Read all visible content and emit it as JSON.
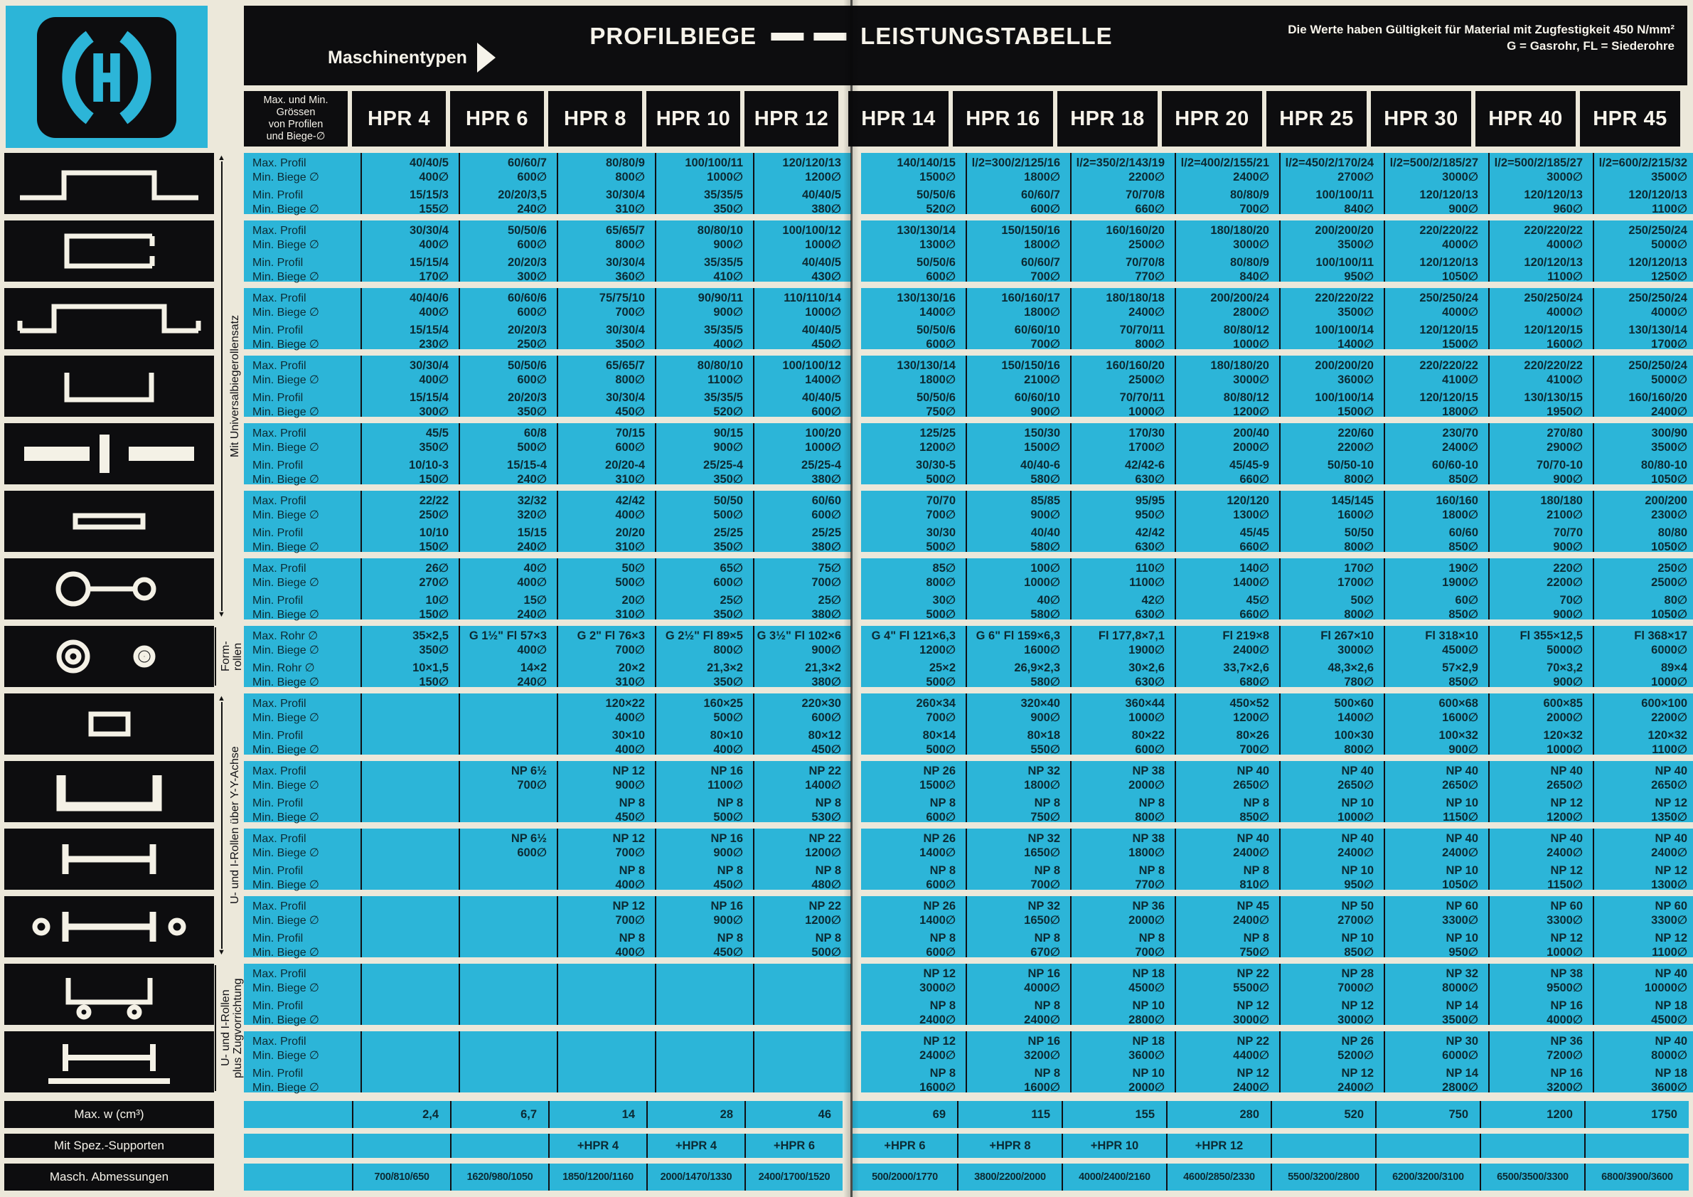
{
  "colors": {
    "cyan": "#2cb5d8",
    "black": "#0d0d0f",
    "paper": "#ece8da",
    "ink": "#0c2a33"
  },
  "header": {
    "machine_types_label": "Maschinentypen",
    "title_left": "PROFILBIEGE",
    "title_right": "LEISTUNGSTABELLE",
    "note_line1": "Die Werte haben Gültigkeit für Material mit Zugfestigkeit 450 N/mm²",
    "note_line2": "G = Gasrohr, FL = Siederohre",
    "size_label_lines": [
      "Max. und Min.",
      "Grössen",
      "von Profilen",
      "und Biege-∅"
    ],
    "columns": [
      "HPR 4",
      "HPR 6",
      "HPR 8",
      "HPR 10",
      "HPR 12",
      "HPR 14",
      "HPR 16",
      "HPR 18",
      "HPR 20",
      "HPR 25",
      "HPR 30",
      "HPR 40",
      "HPR 45"
    ]
  },
  "side_sections": [
    {
      "label": "Mit Universalbiegerollensatz",
      "group_span": 7,
      "arrows": true
    },
    {
      "label": "Form-\nrollen",
      "group_span": 1,
      "arrows": false
    },
    {
      "label": "U- und I-Rollen über Y-Y-Achse",
      "group_span": 4,
      "arrows": true
    },
    {
      "label": "U- und I-Rollen\nplus Zugvorrichtung",
      "group_span": 2,
      "arrows": false
    }
  ],
  "groups": [
    {
      "icon": "hat-profile-icon",
      "labels": [
        "Max. Profil",
        "Min. Biege ∅",
        "Min. Profil",
        "Min. Biege ∅"
      ],
      "max_profil": [
        "40/40/5",
        "60/60/7",
        "80/80/9",
        "100/100/11",
        "120/120/13",
        "140/140/15",
        "l/2=300/2/125/16",
        "l/2=350/2/143/19",
        "l/2=400/2/155/21",
        "l/2=450/2/170/24",
        "l/2=500/2/185/27",
        "l/2=500/2/185/27",
        "l/2=600/2/215/32"
      ],
      "max_biege": [
        "400∅",
        "600∅",
        "800∅",
        "1000∅",
        "1200∅",
        "1500∅",
        "1800∅",
        "2200∅",
        "2400∅",
        "2700∅",
        "3000∅",
        "3000∅",
        "3500∅"
      ],
      "min_profil": [
        "15/15/3",
        "20/20/3,5",
        "30/30/4",
        "35/35/5",
        "40/40/5",
        "50/50/6",
        "60/60/7",
        "70/70/8",
        "80/80/9",
        "100/100/11",
        "120/120/13",
        "120/120/13",
        "120/120/13"
      ],
      "min_biege": [
        "155∅",
        "240∅",
        "310∅",
        "350∅",
        "380∅",
        "520∅",
        "600∅",
        "660∅",
        "700∅",
        "840∅",
        "900∅",
        "960∅",
        "1100∅"
      ]
    },
    {
      "icon": "c-profile-icon",
      "labels": [
        "Max. Profil",
        "Min. Biege ∅",
        "Min. Profil",
        "Min. Biege ∅"
      ],
      "max_profil": [
        "30/30/4",
        "50/50/6",
        "65/65/7",
        "80/80/10",
        "100/100/12",
        "130/130/14",
        "150/150/16",
        "160/160/20",
        "180/180/20",
        "200/200/20",
        "220/220/22",
        "220/220/22",
        "250/250/24"
      ],
      "max_biege": [
        "400∅",
        "600∅",
        "800∅",
        "900∅",
        "1000∅",
        "1300∅",
        "1800∅",
        "2500∅",
        "3000∅",
        "3500∅",
        "4000∅",
        "4000∅",
        "5000∅"
      ],
      "min_profil": [
        "15/15/4",
        "20/20/3",
        "30/30/4",
        "35/35/5",
        "40/40/5",
        "50/50/6",
        "60/60/7",
        "70/70/8",
        "80/80/9",
        "100/100/11",
        "120/120/13",
        "120/120/13",
        "120/120/13"
      ],
      "min_biege": [
        "170∅",
        "300∅",
        "360∅",
        "410∅",
        "430∅",
        "600∅",
        "700∅",
        "770∅",
        "840∅",
        "950∅",
        "1050∅",
        "1100∅",
        "1250∅"
      ]
    },
    {
      "icon": "hat-wide-profile-icon",
      "labels": [
        "Max. Profil",
        "Min. Biege ∅",
        "Min. Profil",
        "Min. Biege ∅"
      ],
      "max_profil": [
        "40/40/6",
        "60/60/6",
        "75/75/10",
        "90/90/11",
        "110/110/14",
        "130/130/16",
        "160/160/17",
        "180/180/18",
        "200/200/24",
        "220/220/22",
        "250/250/24",
        "250/250/24",
        "250/250/24"
      ],
      "max_biege": [
        "400∅",
        "600∅",
        "700∅",
        "900∅",
        "1000∅",
        "1400∅",
        "1800∅",
        "2400∅",
        "2800∅",
        "3500∅",
        "4000∅",
        "4000∅",
        "4000∅"
      ],
      "min_profil": [
        "15/15/4",
        "20/20/3",
        "30/30/4",
        "35/35/5",
        "40/40/5",
        "50/50/6",
        "60/60/10",
        "70/70/11",
        "80/80/12",
        "100/100/14",
        "120/120/15",
        "120/120/15",
        "130/130/14"
      ],
      "min_biege": [
        "230∅",
        "250∅",
        "350∅",
        "400∅",
        "450∅",
        "600∅",
        "700∅",
        "800∅",
        "1000∅",
        "1400∅",
        "1500∅",
        "1600∅",
        "1700∅"
      ]
    },
    {
      "icon": "u-profile-icon",
      "labels": [
        "Max. Profil",
        "Min. Biege ∅",
        "Min. Profil",
        "Min. Biege ∅"
      ],
      "max_profil": [
        "30/30/4",
        "50/50/6",
        "65/65/7",
        "80/80/10",
        "100/100/12",
        "130/130/14",
        "150/150/16",
        "160/160/20",
        "180/180/20",
        "200/200/20",
        "220/220/22",
        "220/220/22",
        "250/250/24"
      ],
      "max_biege": [
        "400∅",
        "600∅",
        "800∅",
        "1100∅",
        "1400∅",
        "1800∅",
        "2100∅",
        "2500∅",
        "3000∅",
        "3600∅",
        "4100∅",
        "4100∅",
        "5000∅"
      ],
      "min_profil": [
        "15/15/4",
        "20/20/3",
        "30/30/4",
        "35/35/5",
        "40/40/5",
        "50/50/6",
        "60/60/10",
        "70/70/11",
        "80/80/12",
        "100/100/14",
        "120/120/15",
        "130/130/15",
        "160/160/20"
      ],
      "min_biege": [
        "300∅",
        "350∅",
        "450∅",
        "520∅",
        "600∅",
        "750∅",
        "900∅",
        "1000∅",
        "1200∅",
        "1500∅",
        "1800∅",
        "1950∅",
        "2400∅"
      ]
    },
    {
      "icon": "flat-on-edge-icon",
      "labels": [
        "Max. Profil",
        "Min. Biege ∅",
        "Min. Profil",
        "Min. Biege ∅"
      ],
      "max_profil": [
        "45/5",
        "60/8",
        "70/15",
        "90/15",
        "100/20",
        "125/25",
        "150/30",
        "170/30",
        "200/40",
        "220/60",
        "230/70",
        "270/80",
        "300/90"
      ],
      "max_biege": [
        "350∅",
        "500∅",
        "600∅",
        "900∅",
        "1000∅",
        "1200∅",
        "1500∅",
        "1700∅",
        "2000∅",
        "2200∅",
        "2400∅",
        "2900∅",
        "3500∅"
      ],
      "min_profil": [
        "10/10-3",
        "15/15-4",
        "20/20-4",
        "25/25-4",
        "25/25-4",
        "30/30-5",
        "40/40-6",
        "42/42-6",
        "45/45-9",
        "50/50-10",
        "60/60-10",
        "70/70-10",
        "80/80-10"
      ],
      "min_biege": [
        "150∅",
        "240∅",
        "310∅",
        "350∅",
        "380∅",
        "500∅",
        "580∅",
        "630∅",
        "660∅",
        "800∅",
        "850∅",
        "900∅",
        "1050∅"
      ]
    },
    {
      "icon": "flat-bar-icon",
      "labels": [
        "Max. Profil",
        "Min. Biege ∅",
        "Min. Profil",
        "Min. Biege ∅"
      ],
      "max_profil": [
        "22/22",
        "32/32",
        "42/42",
        "50/50",
        "60/60",
        "70/70",
        "85/85",
        "95/95",
        "120/120",
        "145/145",
        "160/160",
        "180/180",
        "200/200"
      ],
      "max_biege": [
        "250∅",
        "320∅",
        "400∅",
        "500∅",
        "600∅",
        "700∅",
        "900∅",
        "950∅",
        "1300∅",
        "1600∅",
        "1800∅",
        "2100∅",
        "2300∅"
      ],
      "min_profil": [
        "10/10",
        "15/15",
        "20/20",
        "25/25",
        "25/25",
        "30/30",
        "40/40",
        "42/42",
        "45/45",
        "50/50",
        "60/60",
        "70/70",
        "80/80"
      ],
      "min_biege": [
        "150∅",
        "240∅",
        "310∅",
        "350∅",
        "380∅",
        "500∅",
        "580∅",
        "630∅",
        "660∅",
        "800∅",
        "850∅",
        "900∅",
        "1050∅"
      ]
    },
    {
      "icon": "round-bar-icon",
      "labels": [
        "Max. Profil",
        "Min. Biege ∅",
        "Min. Profil",
        "Min. Biege ∅"
      ],
      "max_profil": [
        "26∅",
        "40∅",
        "50∅",
        "65∅",
        "75∅",
        "85∅",
        "100∅",
        "110∅",
        "140∅",
        "170∅",
        "190∅",
        "220∅",
        "250∅"
      ],
      "max_biege": [
        "270∅",
        "400∅",
        "500∅",
        "600∅",
        "700∅",
        "800∅",
        "1000∅",
        "1100∅",
        "1400∅",
        "1700∅",
        "1900∅",
        "2200∅",
        "2500∅"
      ],
      "min_profil": [
        "10∅",
        "15∅",
        "20∅",
        "25∅",
        "25∅",
        "30∅",
        "40∅",
        "42∅",
        "45∅",
        "50∅",
        "60∅",
        "70∅",
        "80∅"
      ],
      "min_biege": [
        "150∅",
        "240∅",
        "310∅",
        "350∅",
        "380∅",
        "500∅",
        "580∅",
        "630∅",
        "660∅",
        "800∅",
        "850∅",
        "900∅",
        "1050∅"
      ]
    },
    {
      "icon": "tube-icon",
      "labels": [
        "Max. Rohr ∅",
        "Min. Biege ∅",
        "Min. Rohr ∅",
        "Min. Biege ∅"
      ],
      "max_profil": [
        "35×2,5",
        "G 1½\" Fl 57×3",
        "G 2\" Fl 76×3",
        "G 2½\" Fl 89×5",
        "G 3½\" Fl 102×6",
        "G 4\" Fl 121×6,3",
        "G 6\" Fl 159×6,3",
        "Fl 177,8×7,1",
        "Fl 219×8",
        "Fl 267×10",
        "Fl 318×10",
        "Fl 355×12,5",
        "Fl 368×17"
      ],
      "max_biege": [
        "350∅",
        "400∅",
        "700∅",
        "800∅",
        "900∅",
        "1200∅",
        "1600∅",
        "1900∅",
        "2400∅",
        "3000∅",
        "4500∅",
        "5000∅",
        "6000∅"
      ],
      "min_profil": [
        "10×1,5",
        "14×2",
        "20×2",
        "21,3×2",
        "21,3×2",
        "25×2",
        "26,9×2,3",
        "30×2,6",
        "33,7×2,6",
        "48,3×2,6",
        "57×2,9",
        "70×3,2",
        "89×4"
      ],
      "min_biege": [
        "150∅",
        "240∅",
        "310∅",
        "350∅",
        "380∅",
        "500∅",
        "580∅",
        "630∅",
        "680∅",
        "780∅",
        "850∅",
        "900∅",
        "1000∅"
      ]
    },
    {
      "icon": "rect-bar-icon",
      "labels": [
        "Max. Profil",
        "Min. Biege ∅",
        "Min. Profil",
        "Min. Biege ∅"
      ],
      "max_profil": [
        "",
        "",
        "120×22",
        "160×25",
        "220×30",
        "260×34",
        "320×40",
        "360×44",
        "450×52",
        "500×60",
        "600×68",
        "600×85",
        "600×100"
      ],
      "max_biege": [
        "",
        "",
        "400∅",
        "500∅",
        "600∅",
        "700∅",
        "900∅",
        "1000∅",
        "1200∅",
        "1400∅",
        "1600∅",
        "2000∅",
        "2200∅"
      ],
      "min_profil": [
        "",
        "",
        "30×10",
        "80×10",
        "80×12",
        "80×14",
        "80×18",
        "80×22",
        "80×26",
        "100×30",
        "100×32",
        "120×32",
        "120×32"
      ],
      "min_biege": [
        "",
        "",
        "400∅",
        "400∅",
        "450∅",
        "500∅",
        "550∅",
        "600∅",
        "700∅",
        "800∅",
        "900∅",
        "1000∅",
        "1100∅"
      ]
    },
    {
      "icon": "channel-large-icon",
      "labels": [
        "Max. Profil",
        "Min. Biege ∅",
        "Min. Profil",
        "Min. Biege ∅"
      ],
      "max_profil": [
        "",
        "NP 6½",
        "NP 12",
        "NP 16",
        "NP 22",
        "NP 26",
        "NP 32",
        "NP 38",
        "NP 40",
        "NP 40",
        "NP 40",
        "NP 40",
        "NP 40"
      ],
      "max_biege": [
        "",
        "700∅",
        "900∅",
        "1100∅",
        "1400∅",
        "1500∅",
        "1800∅",
        "2000∅",
        "2650∅",
        "2650∅",
        "2650∅",
        "2650∅",
        "2650∅"
      ],
      "min_profil": [
        "",
        "",
        "NP 8",
        "NP 8",
        "NP 8",
        "NP 8",
        "NP 8",
        "NP 8",
        "NP 8",
        "NP 10",
        "NP 10",
        "NP 12",
        "NP 12"
      ],
      "min_biege": [
        "",
        "",
        "450∅",
        "500∅",
        "530∅",
        "600∅",
        "750∅",
        "800∅",
        "850∅",
        "1000∅",
        "1150∅",
        "1200∅",
        "1350∅"
      ]
    },
    {
      "icon": "i-beam-icon",
      "labels": [
        "Max. Profil",
        "Min. Biege ∅",
        "Min. Profil",
        "Min. Biege ∅"
      ],
      "max_profil": [
        "",
        "NP 6½",
        "NP 12",
        "NP 16",
        "NP 22",
        "NP 26",
        "NP 32",
        "NP 38",
        "NP 40",
        "NP 40",
        "NP 40",
        "NP 40",
        "NP 40"
      ],
      "max_biege": [
        "",
        "600∅",
        "700∅",
        "900∅",
        "1200∅",
        "1400∅",
        "1650∅",
        "1800∅",
        "2400∅",
        "2400∅",
        "2400∅",
        "2400∅",
        "2400∅"
      ],
      "min_profil": [
        "",
        "",
        "NP 8",
        "NP 8",
        "NP 8",
        "NP 8",
        "NP 8",
        "NP 8",
        "NP 8",
        "NP 10",
        "NP 10",
        "NP 12",
        "NP 12"
      ],
      "min_biege": [
        "",
        "",
        "400∅",
        "450∅",
        "480∅",
        "600∅",
        "700∅",
        "770∅",
        "810∅",
        "950∅",
        "1050∅",
        "1150∅",
        "1300∅"
      ]
    },
    {
      "icon": "i-beam-rollers-icon",
      "labels": [
        "Max. Profil",
        "Min. Biege ∅",
        "Min. Profil",
        "Min. Biege ∅"
      ],
      "max_profil": [
        "",
        "",
        "NP 12",
        "NP 16",
        "NP 22",
        "NP 26",
        "NP 32",
        "NP 36",
        "NP 45",
        "NP 50",
        "NP 60",
        "NP 60",
        "NP 60"
      ],
      "max_biege": [
        "",
        "",
        "700∅",
        "900∅",
        "1200∅",
        "1400∅",
        "1650∅",
        "2000∅",
        "2400∅",
        "2700∅",
        "3300∅",
        "3300∅",
        "3300∅"
      ],
      "min_profil": [
        "",
        "",
        "NP 8",
        "NP 8",
        "NP 8",
        "NP 8",
        "NP 8",
        "NP 8",
        "NP 8",
        "NP 10",
        "NP 10",
        "NP 12",
        "NP 12"
      ],
      "min_biege": [
        "",
        "",
        "400∅",
        "450∅",
        "500∅",
        "600∅",
        "670∅",
        "700∅",
        "750∅",
        "850∅",
        "950∅",
        "1000∅",
        "1100∅"
      ]
    },
    {
      "icon": "channel-rollers-icon",
      "labels": [
        "Max. Profil",
        "Min. Biege ∅",
        "Min. Profil",
        "Min. Biege ∅"
      ],
      "max_profil": [
        "",
        "",
        "",
        "",
        "",
        "NP 12",
        "NP 16",
        "NP 18",
        "NP 22",
        "NP 28",
        "NP 32",
        "NP 38",
        "NP 40"
      ],
      "max_biege": [
        "",
        "",
        "",
        "",
        "",
        "3000∅",
        "4000∅",
        "4500∅",
        "5500∅",
        "7000∅",
        "8000∅",
        "9500∅",
        "10000∅"
      ],
      "min_profil": [
        "",
        "",
        "",
        "",
        "",
        "NP 8",
        "NP 8",
        "NP 10",
        "NP 12",
        "NP 12",
        "NP 14",
        "NP 16",
        "NP 18"
      ],
      "min_biege": [
        "",
        "",
        "",
        "",
        "",
        "2400∅",
        "2400∅",
        "2800∅",
        "3000∅",
        "3000∅",
        "3500∅",
        "4000∅",
        "4500∅"
      ]
    },
    {
      "icon": "i-beam-drawbar-icon",
      "labels": [
        "Max. Profil",
        "Min. Biege ∅",
        "Min. Profil",
        "Min. Biege ∅"
      ],
      "max_profil": [
        "",
        "",
        "",
        "",
        "",
        "NP 12",
        "NP 16",
        "NP 18",
        "NP 22",
        "NP 26",
        "NP 30",
        "NP 36",
        "NP 40"
      ],
      "max_biege": [
        "",
        "",
        "",
        "",
        "",
        "2400∅",
        "3200∅",
        "3600∅",
        "4400∅",
        "5200∅",
        "6000∅",
        "7200∅",
        "8000∅"
      ],
      "min_profil": [
        "",
        "",
        "",
        "",
        "",
        "NP 8",
        "NP 8",
        "NP 10",
        "NP 12",
        "NP 12",
        "NP 14",
        "NP 16",
        "NP 18"
      ],
      "min_biege": [
        "",
        "",
        "",
        "",
        "",
        "1600∅",
        "1600∅",
        "2000∅",
        "2400∅",
        "2400∅",
        "2800∅",
        "3200∅",
        "3600∅"
      ]
    }
  ],
  "bottom_rows": [
    {
      "label": "Max. w (cm³)",
      "align": "right",
      "small": false,
      "values": [
        "2,4",
        "6,7",
        "14",
        "28",
        "46",
        "69",
        "115",
        "155",
        "280",
        "520",
        "750",
        "1200",
        "1750"
      ]
    },
    {
      "label": "Mit Spez.-Supporten",
      "align": "center",
      "small": false,
      "values": [
        "",
        "",
        "+HPR 4",
        "+HPR 4",
        "+HPR 6",
        "+HPR 6",
        "+HPR 8",
        "+HPR 10",
        "+HPR 12",
        "",
        "",
        "",
        ""
      ]
    },
    {
      "label": "Masch. Abmessungen",
      "align": "center",
      "small": true,
      "values": [
        "700/810/650",
        "1620/980/1050",
        "1850/1200/1160",
        "2000/1470/1330",
        "2400/1700/1520",
        "500/2000/1770",
        "3800/2200/2000",
        "4000/2400/2160",
        "4600/2850/2330",
        "5500/3200/2800",
        "6200/3200/3100",
        "6500/3500/3300",
        "6800/3900/3600"
      ]
    }
  ]
}
